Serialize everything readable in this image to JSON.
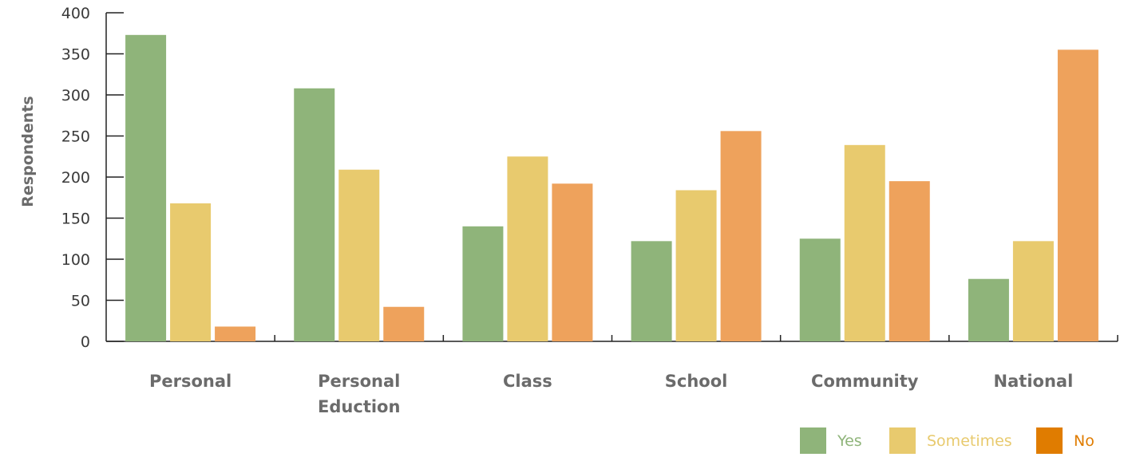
{
  "chart_data": {
    "type": "bar",
    "categories": [
      "Personal",
      "Personal Eduction",
      "Class",
      "School",
      "Community",
      "National"
    ],
    "series": [
      {
        "name": "Yes",
        "values": [
          373,
          308,
          140,
          122,
          125,
          76
        ],
        "color": "#8fb47a"
      },
      {
        "name": "Sometimes",
        "values": [
          168,
          209,
          225,
          184,
          239,
          122
        ],
        "color": "#e8ca6e"
      },
      {
        "name": "No",
        "values": [
          18,
          42,
          192,
          256,
          195,
          355
        ],
        "color": "#eea25c"
      }
    ],
    "legend_colors": {
      "Yes": "#8fb47a",
      "Sometimes": "#e8ca6e",
      "No": "#e07c00"
    },
    "legend_text_colors": {
      "Yes": "#8fb47a",
      "Sometimes": "#e8ca6e",
      "No": "#e07c00"
    },
    "ylabel": "Respondents",
    "xlabel": "",
    "ylim": [
      0,
      400
    ],
    "yticks": [
      0,
      50,
      100,
      150,
      200,
      250,
      300,
      350,
      400
    ],
    "grid": false,
    "legend_position": "bottom-right"
  }
}
